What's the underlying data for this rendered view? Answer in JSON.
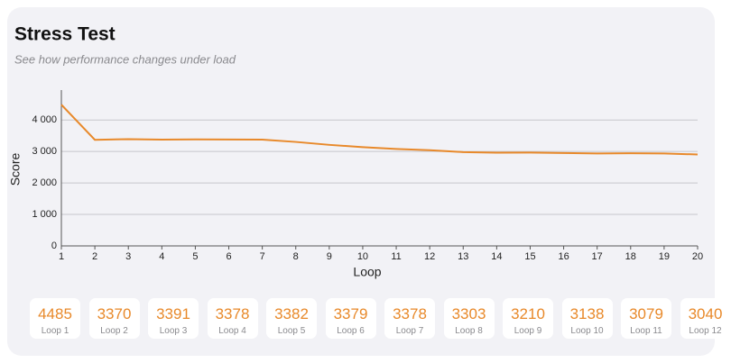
{
  "header": {
    "title": "Stress Test",
    "subtitle": "See how performance changes under load"
  },
  "chart_data": {
    "type": "line",
    "xlabel": "Loop",
    "ylabel": "Score",
    "x": [
      1,
      2,
      3,
      4,
      5,
      6,
      7,
      8,
      9,
      10,
      11,
      12,
      13,
      14,
      15,
      16,
      17,
      18,
      19,
      20
    ],
    "values": [
      4485,
      3370,
      3391,
      3378,
      3382,
      3379,
      3378,
      3303,
      3210,
      3138,
      3079,
      3040,
      2980,
      2960,
      2965,
      2950,
      2935,
      2945,
      2935,
      2905
    ],
    "color": "#e8892a",
    "xlim": [
      1,
      20
    ],
    "xticks": [
      1,
      2,
      3,
      4,
      5,
      6,
      7,
      8,
      9,
      10,
      11,
      12,
      13,
      14,
      15,
      16,
      17,
      18,
      19,
      20
    ],
    "ylim": [
      0,
      4950
    ],
    "yticks": [
      0,
      {
        "value": 1000,
        "label": "1 000"
      },
      {
        "value": 2000,
        "label": "2 000"
      },
      {
        "value": 3000,
        "label": "3 000"
      },
      {
        "value": 4000,
        "label": "4 000"
      }
    ],
    "grid": true
  },
  "cards": {
    "labels": [
      "Loop 1",
      "Loop 2",
      "Loop 3",
      "Loop 4",
      "Loop 5",
      "Loop 6",
      "Loop 7",
      "Loop 8",
      "Loop 9",
      "Loop 10",
      "Loop 11",
      "Loop 12"
    ]
  }
}
